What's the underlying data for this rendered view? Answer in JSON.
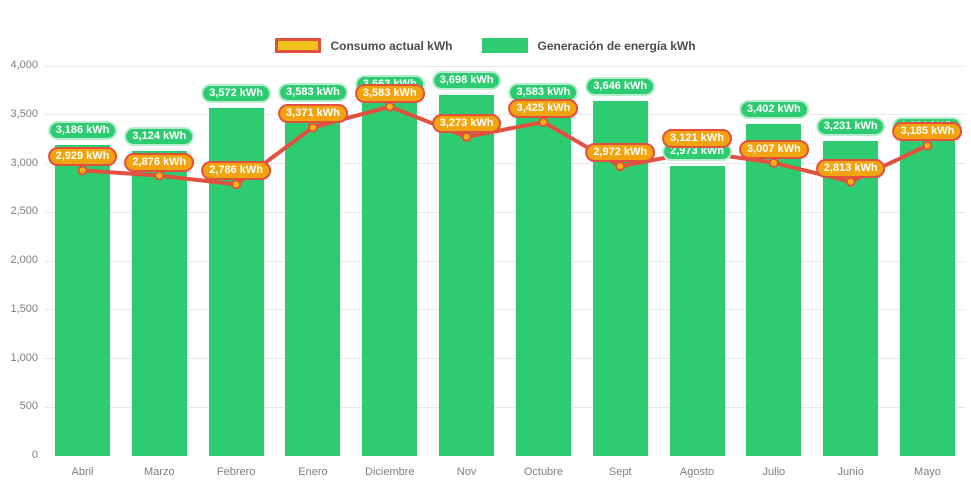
{
  "legend": {
    "consumo_label": "Consumo actual kWh",
    "generacion_label": "Generación de energía kWh"
  },
  "colors": {
    "bar_green": "#2ECC71",
    "pill_green_border": "#b9ecd1",
    "line_red": "#E2503F",
    "marker_yellow": "#F5B70A",
    "pill_orange_fill": "#F2A40E",
    "legend_yellow_fill": "#EFC319",
    "axis_text": "#808080"
  },
  "chart_data": {
    "type": "bar",
    "categories": [
      "Abril",
      "Marzo",
      "Febrero",
      "Enero",
      "Diciembre",
      "Nov",
      "Octubre",
      "Sept",
      "Agosto",
      "Julio",
      "Junio",
      "Mayo"
    ],
    "series": [
      {
        "name": "Generación de energía kWh",
        "type": "bar",
        "color": "#2ECC71",
        "values": [
          3186,
          3124,
          3572,
          3583,
          3663,
          3698,
          3583,
          3646,
          2973,
          3402,
          3231,
          3230
        ],
        "labels": [
          "3,186 kWh",
          "3,124 kWh",
          "3,572 kWh",
          "3,583 kWh",
          "3,663 kWh",
          "3,698 kWh",
          "3,583 kWh",
          "3,646 kWh",
          "2,973 kWh",
          "3,402 kWh",
          "3,231 kWh",
          "3,230 kWh"
        ]
      },
      {
        "name": "Consumo actual kWh",
        "type": "line",
        "color": "#E2503F",
        "marker_color": "#F5B70A",
        "values": [
          2929,
          2876,
          2786,
          3371,
          3583,
          3273,
          3425,
          2972,
          3121,
          3007,
          2813,
          3185
        ],
        "labels": [
          "2,929 kWh",
          "2,876 kWh",
          "2,786 kWh",
          "3,371 kWh",
          "3,583 kWh",
          "3,273 kWh",
          "3,425 kWh",
          "2,972 kWh",
          "3,121 kWh",
          "3,007 kWh",
          "2,813 kWh",
          "3,185 kWh"
        ]
      }
    ],
    "ylim": [
      0,
      4000
    ],
    "ytick_labels": [
      "4,000",
      "3,500",
      "3,000",
      "2,500",
      "2,000",
      "1,500",
      "1,000",
      "500",
      "0"
    ],
    "ytick_values": [
      4000,
      3500,
      3000,
      2500,
      2000,
      1500,
      1000,
      500,
      0
    ],
    "grid": true,
    "legend_position": "top"
  }
}
